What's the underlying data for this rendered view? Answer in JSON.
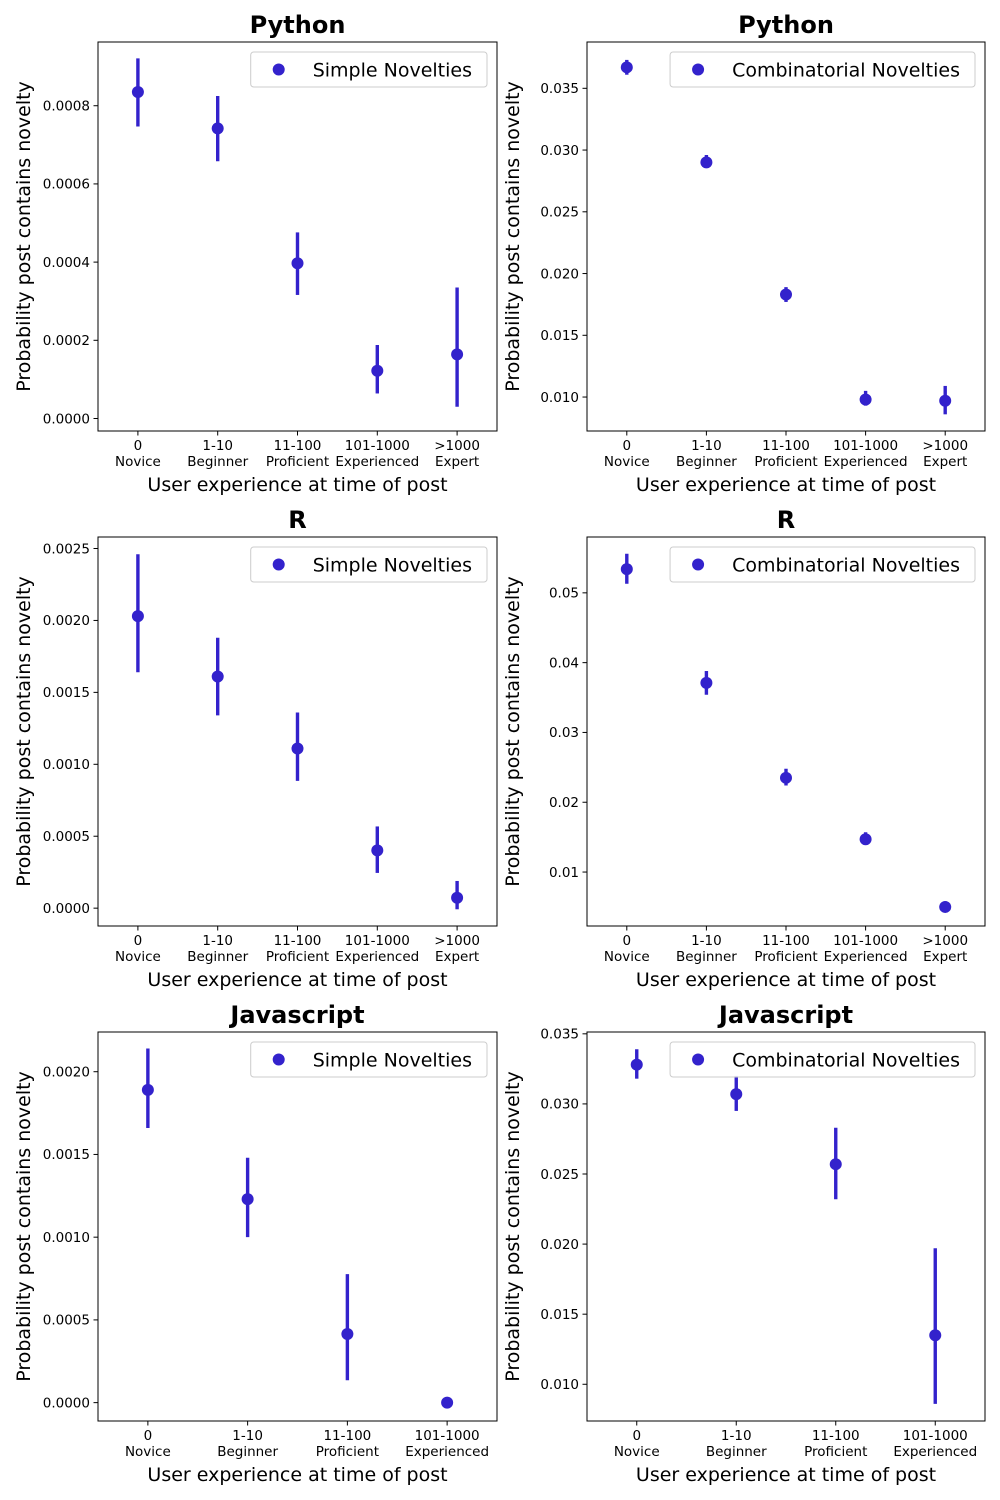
{
  "figure": {
    "marker_color": "#3322cc",
    "xlabel": "User experience at time of post",
    "ylabel": "Probability post contains novelty"
  },
  "chart_data": [
    {
      "type": "scatter",
      "title": "Python",
      "legend": "Simple Novelties",
      "legend_loc": "upper right",
      "categories": [
        "0\nNovice",
        "1-10\nBeginner",
        "11-100\nProficient",
        "101-1000\nExperienced",
        ">1000\nExpert"
      ],
      "values": [
        0.000835,
        0.000742,
        0.000397,
        0.000122,
        0.000164
      ],
      "err_low": [
        0.000747,
        0.000658,
        0.000316,
        6.4e-05,
        3e-05
      ],
      "err_high": [
        0.000921,
        0.000825,
        0.000476,
        0.000188,
        0.000335
      ],
      "ylim": [
        -3.2e-05,
        0.000963
      ],
      "yticks": [
        0,
        0.0002,
        0.0004,
        0.0006,
        0.0008
      ],
      "ytick_labels": [
        "0.0000",
        "0.0002",
        "0.0004",
        "0.0006",
        "0.0008"
      ]
    },
    {
      "type": "scatter",
      "title": "Python",
      "legend": "Combinatorial Novelties",
      "legend_loc": "upper right",
      "categories": [
        "0\nNovice",
        "1-10\nBeginner",
        "11-100\nProficient",
        "101-1000\nExperienced",
        ">1000\nExpert"
      ],
      "values": [
        0.0367,
        0.029,
        0.0183,
        0.0098,
        0.0097
      ],
      "err_low": [
        0.0361,
        0.0286,
        0.0177,
        0.0093,
        0.0086
      ],
      "err_high": [
        0.0373,
        0.0296,
        0.0189,
        0.0105,
        0.0109
      ],
      "ylim": [
        0.00725,
        0.03875
      ],
      "yticks": [
        0.01,
        0.015,
        0.02,
        0.025,
        0.03,
        0.035
      ],
      "ytick_labels": [
        "0.010",
        "0.015",
        "0.020",
        "0.025",
        "0.030",
        "0.035"
      ]
    },
    {
      "type": "scatter",
      "title": "R",
      "legend": "Simple Novelties",
      "legend_loc": "upper right",
      "categories": [
        "0\nNovice",
        "1-10\nBeginner",
        "11-100\nProficient",
        "101-1000\nExperienced",
        ">1000\nExpert"
      ],
      "values": [
        0.00203,
        0.00161,
        0.00111,
        0.000402,
        7.25e-05
      ],
      "err_low": [
        0.00164,
        0.00134,
        0.000885,
        0.000245,
        -7.8e-06
      ],
      "err_high": [
        0.00246,
        0.00188,
        0.00136,
        0.000568,
        0.000189
      ],
      "ylim": [
        -0.000124,
        0.00258
      ],
      "yticks": [
        0,
        0.0005,
        0.001,
        0.0015,
        0.002,
        0.0025
      ],
      "ytick_labels": [
        "0.0000",
        "0.0005",
        "0.0010",
        "0.0015",
        "0.0020",
        "0.0025"
      ]
    },
    {
      "type": "scatter",
      "title": "R",
      "legend": "Combinatorial Novelties",
      "legend_loc": "upper right",
      "categories": [
        "0\nNovice",
        "1-10\nBeginner",
        "11-100\nProficient",
        "101-1000\nExperienced",
        ">1000\nExpert"
      ],
      "values": [
        0.0534,
        0.0371,
        0.0235,
        0.0147,
        0.005
      ],
      "err_low": [
        0.0513,
        0.0354,
        0.0224,
        0.0139,
        0.0044
      ],
      "err_high": [
        0.0556,
        0.0388,
        0.0248,
        0.0157,
        0.0058
      ],
      "ylim": [
        0.00227,
        0.058
      ],
      "yticks": [
        0.01,
        0.02,
        0.03,
        0.04,
        0.05
      ],
      "ytick_labels": [
        "0.01",
        "0.02",
        "0.03",
        "0.04",
        "0.05"
      ]
    },
    {
      "type": "scatter",
      "title": "Javascript",
      "legend": "Simple Novelties",
      "legend_loc": "upper right",
      "categories": [
        "0\nNovice",
        "1-10\nBeginner",
        "11-100\nProficient",
        "101-1000\nExperienced"
      ],
      "values": [
        0.00189,
        0.00123,
        0.000415,
        0.0
      ],
      "err_low": [
        0.00166,
        0.001,
        0.000135,
        0.0
      ],
      "err_high": [
        0.00214,
        0.00148,
        0.000777,
        0.0
      ],
      "ylim": [
        -0.000111,
        0.00224
      ],
      "yticks": [
        0,
        0.0005,
        0.001,
        0.0015,
        0.002
      ],
      "ytick_labels": [
        "0.0000",
        "0.0005",
        "0.0010",
        "0.0015",
        "0.0020"
      ]
    },
    {
      "type": "scatter",
      "title": "Javascript",
      "legend": "Combinatorial Novelties",
      "legend_loc": "upper right",
      "categories": [
        "0\nNovice",
        "1-10\nBeginner",
        "11-100\nProficient",
        "101-1000\nExperienced"
      ],
      "values": [
        0.0328,
        0.0307,
        0.0257,
        0.0135
      ],
      "err_low": [
        0.0318,
        0.0295,
        0.0232,
        0.0086
      ],
      "err_high": [
        0.0339,
        0.032,
        0.0283,
        0.0197
      ],
      "ylim": [
        0.00738,
        0.03513
      ],
      "yticks": [
        0.01,
        0.015,
        0.02,
        0.025,
        0.03,
        0.035
      ],
      "ytick_labels": [
        "0.010",
        "0.015",
        "0.020",
        "0.025",
        "0.030",
        "0.035"
      ]
    }
  ]
}
